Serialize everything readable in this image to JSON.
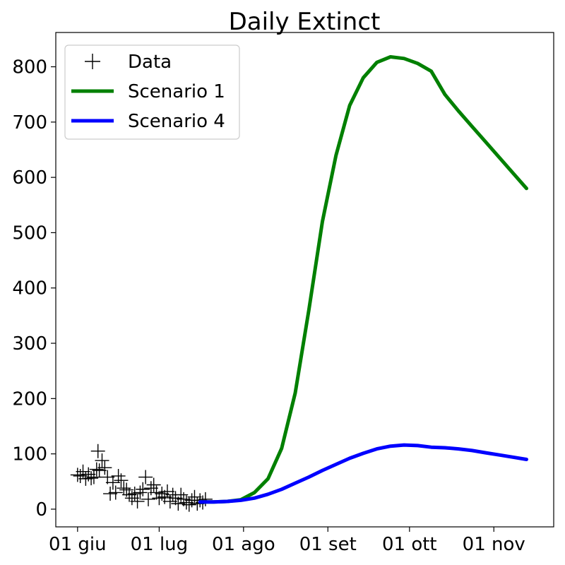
{
  "chart_data": {
    "type": "line",
    "title": "Daily Extinct",
    "xlabel": "",
    "ylabel": "",
    "x_ticks": [
      {
        "label": "01 giu",
        "day": 0
      },
      {
        "label": "01 lug",
        "day": 30
      },
      {
        "label": "01 ago",
        "day": 61
      },
      {
        "label": "01 set",
        "day": 92
      },
      {
        "label": "01 ott",
        "day": 122
      },
      {
        "label": "01 nov",
        "day": 153
      }
    ],
    "y_ticks": [
      0,
      100,
      200,
      300,
      400,
      500,
      600,
      700,
      800
    ],
    "xlim": [
      -8,
      175
    ],
    "ylim": [
      -32,
      862
    ],
    "grid": false,
    "legend_position": "top-left",
    "series": [
      {
        "name": "Data",
        "style": "marker-plus",
        "color": "#000000",
        "points": [
          [
            0,
            62
          ],
          [
            1,
            60
          ],
          [
            2,
            68
          ],
          [
            3,
            55
          ],
          [
            4,
            63
          ],
          [
            5,
            56
          ],
          [
            6,
            58
          ],
          [
            7,
            72
          ],
          [
            7.5,
            105
          ],
          [
            8,
            70
          ],
          [
            9,
            88
          ],
          [
            10,
            75
          ],
          [
            11,
            58
          ],
          [
            12,
            28
          ],
          [
            13,
            48
          ],
          [
            14,
            30
          ],
          [
            15,
            60
          ],
          [
            16,
            52
          ],
          [
            17,
            38
          ],
          [
            18,
            35
          ],
          [
            19,
            26
          ],
          [
            20,
            20
          ],
          [
            21,
            28
          ],
          [
            22,
            14
          ],
          [
            23,
            30
          ],
          [
            24,
            36
          ],
          [
            25,
            58
          ],
          [
            26,
            18
          ],
          [
            27,
            38
          ],
          [
            28,
            44
          ],
          [
            29,
            30
          ],
          [
            30,
            20
          ],
          [
            31,
            28
          ],
          [
            32,
            22
          ],
          [
            33,
            32
          ],
          [
            34,
            14
          ],
          [
            35,
            26
          ],
          [
            36,
            20
          ],
          [
            37,
            10
          ],
          [
            38,
            26
          ],
          [
            39,
            18
          ],
          [
            40,
            12
          ],
          [
            41,
            8
          ],
          [
            42,
            16
          ],
          [
            43,
            22
          ],
          [
            44,
            10
          ],
          [
            45,
            16
          ],
          [
            46,
            12
          ],
          [
            47,
            18
          ]
        ]
      },
      {
        "name": "Scenario 1",
        "style": "line",
        "color": "#008000",
        "points": [
          [
            45,
            13
          ],
          [
            50,
            13
          ],
          [
            55,
            14
          ],
          [
            60,
            17
          ],
          [
            65,
            30
          ],
          [
            70,
            55
          ],
          [
            75,
            110
          ],
          [
            80,
            210
          ],
          [
            85,
            360
          ],
          [
            90,
            520
          ],
          [
            95,
            640
          ],
          [
            100,
            730
          ],
          [
            105,
            780
          ],
          [
            110,
            808
          ],
          [
            115,
            818
          ],
          [
            120,
            815
          ],
          [
            125,
            806
          ],
          [
            130,
            792
          ],
          [
            135,
            750
          ],
          [
            140,
            720
          ],
          [
            145,
            692
          ],
          [
            150,
            664
          ],
          [
            155,
            636
          ],
          [
            160,
            608
          ],
          [
            165,
            580
          ]
        ]
      },
      {
        "name": "Scenario 4",
        "style": "line",
        "color": "#0000ff",
        "points": [
          [
            45,
            13
          ],
          [
            50,
            13
          ],
          [
            55,
            14
          ],
          [
            60,
            16
          ],
          [
            65,
            20
          ],
          [
            70,
            27
          ],
          [
            75,
            36
          ],
          [
            80,
            47
          ],
          [
            85,
            58
          ],
          [
            90,
            70
          ],
          [
            95,
            81
          ],
          [
            100,
            92
          ],
          [
            105,
            101
          ],
          [
            110,
            109
          ],
          [
            115,
            114
          ],
          [
            120,
            116
          ],
          [
            125,
            115
          ],
          [
            130,
            112
          ],
          [
            135,
            111
          ],
          [
            140,
            109
          ],
          [
            145,
            106
          ],
          [
            150,
            102
          ],
          [
            155,
            98
          ],
          [
            160,
            94
          ],
          [
            165,
            90
          ]
        ]
      }
    ]
  }
}
